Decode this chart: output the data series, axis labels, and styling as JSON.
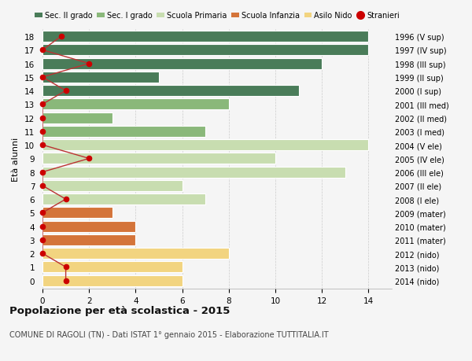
{
  "ages": [
    18,
    17,
    16,
    15,
    14,
    13,
    12,
    11,
    10,
    9,
    8,
    7,
    6,
    5,
    4,
    3,
    2,
    1,
    0
  ],
  "years": [
    "1996 (V sup)",
    "1997 (IV sup)",
    "1998 (III sup)",
    "1999 (II sup)",
    "2000 (I sup)",
    "2001 (III med)",
    "2002 (II med)",
    "2003 (I med)",
    "2004 (V ele)",
    "2005 (IV ele)",
    "2006 (III ele)",
    "2007 (II ele)",
    "2008 (I ele)",
    "2009 (mater)",
    "2010 (mater)",
    "2011 (mater)",
    "2012 (nido)",
    "2013 (nido)",
    "2014 (nido)"
  ],
  "bar_values": [
    14,
    14,
    12,
    5,
    11,
    8,
    3,
    7,
    14,
    10,
    13,
    6,
    7,
    3,
    4,
    4,
    8,
    6,
    6
  ],
  "bar_colors": [
    "#4a7c59",
    "#4a7c59",
    "#4a7c59",
    "#4a7c59",
    "#4a7c59",
    "#8ab87a",
    "#8ab87a",
    "#8ab87a",
    "#c8ddb0",
    "#c8ddb0",
    "#c8ddb0",
    "#c8ddb0",
    "#c8ddb0",
    "#d4743a",
    "#d4743a",
    "#d4743a",
    "#f2d480",
    "#f2d480",
    "#f2d480"
  ],
  "stranieri_x": [
    0.8,
    0.0,
    2.0,
    0.0,
    1.0,
    0.0,
    0.0,
    0.0,
    0.0,
    2.0,
    0.0,
    0.0,
    1.0,
    0.0,
    0.0,
    0.0,
    0.0,
    1.0,
    1.0
  ],
  "legend_labels": [
    "Sec. II grado",
    "Sec. I grado",
    "Scuola Primaria",
    "Scuola Infanzia",
    "Asilo Nido",
    "Stranieri"
  ],
  "legend_colors": [
    "#4a7c59",
    "#8ab87a",
    "#c8ddb0",
    "#d4743a",
    "#f2d480",
    "#cc0000"
  ],
  "ylabel": "Età alunni",
  "title_bold": "Popolazione per età scolastica - 2015",
  "subtitle": "COMUNE DI RAGOLI (TN) - Dati ISTAT 1° gennaio 2015 - Elaborazione TUTTITALIA.IT",
  "xlim": [
    0,
    15
  ],
  "xticks": [
    0,
    2,
    4,
    6,
    8,
    10,
    12,
    14
  ],
  "bg_color": "#f5f5f5",
  "stranieri_dot_color": "#cc0000",
  "stranieri_line_color": "#bb3333"
}
